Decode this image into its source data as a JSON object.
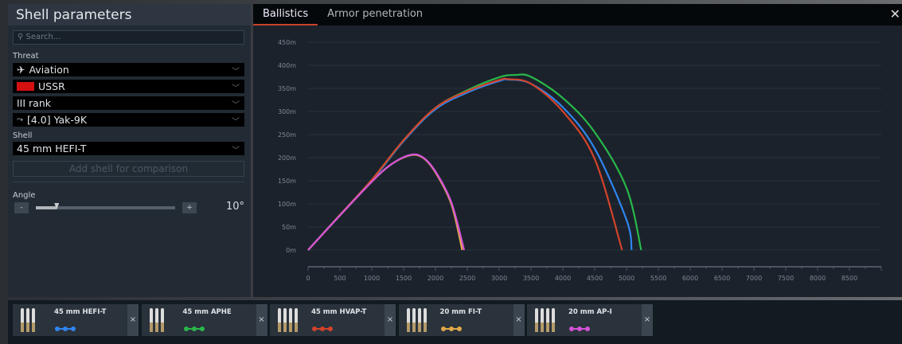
{
  "panel": {
    "title": "Shell parameters",
    "search_placeholder": "Search...",
    "threat_label": "Threat",
    "threat": "Aviation",
    "country": "USSR",
    "rank": "III rank",
    "vehicle": "[4.0] Yak-9K",
    "shell_label": "Shell",
    "shell": "45 mm HEFI-T",
    "add_button": "Add shell for comparison",
    "angle_label": "Angle",
    "angle_value": "10°",
    "angle_minus": "-",
    "angle_plus": "+",
    "angle_fraction": 0.15
  },
  "tabs": [
    {
      "label": "Ballistics",
      "active": true
    },
    {
      "label": "Armor penetration",
      "active": false
    }
  ],
  "close_label": "✕",
  "chart_data": {
    "type": "line",
    "xlim": [
      0,
      9000
    ],
    "ylim": [
      0,
      450
    ],
    "grid": true,
    "yticks": [
      "0m",
      "50m",
      "100m",
      "150m",
      "200m",
      "250m",
      "300m",
      "350m",
      "400m",
      "450m"
    ],
    "yvals": [
      0,
      50,
      100,
      150,
      200,
      250,
      300,
      350,
      400,
      450
    ],
    "xticks": [
      "0",
      "500",
      "1000",
      "1500",
      "2000",
      "2500",
      "3000",
      "3500",
      "4000",
      "4500",
      "5000",
      "5500",
      "6000",
      "6500",
      "7000",
      "7500",
      "8000",
      "8500"
    ],
    "series": [
      {
        "name": "45 mm HEFI-T",
        "color": "#2f86f0",
        "points": [
          [
            0,
            0
          ],
          [
            500,
            76
          ],
          [
            1000,
            150
          ],
          [
            1500,
            236
          ],
          [
            2000,
            305
          ],
          [
            2500,
            341
          ],
          [
            3000,
            366
          ],
          [
            3150,
            369
          ],
          [
            3500,
            360
          ],
          [
            4000,
            309
          ],
          [
            4500,
            220
          ],
          [
            5000,
            65
          ],
          [
            5080,
            0
          ]
        ]
      },
      {
        "name": "45 mm APHE",
        "color": "#28b84a",
        "points": [
          [
            0,
            0
          ],
          [
            500,
            76
          ],
          [
            1000,
            152
          ],
          [
            1500,
            238
          ],
          [
            2000,
            308
          ],
          [
            2500,
            346
          ],
          [
            3000,
            374
          ],
          [
            3250,
            379
          ],
          [
            3500,
            375
          ],
          [
            4000,
            329
          ],
          [
            4500,
            255
          ],
          [
            5000,
            134
          ],
          [
            5230,
            0
          ]
        ]
      },
      {
        "name": "45 mm HVAP-T",
        "color": "#d2432b",
        "points": [
          [
            0,
            0
          ],
          [
            500,
            76
          ],
          [
            1000,
            152
          ],
          [
            1500,
            238
          ],
          [
            2000,
            308
          ],
          [
            2500,
            344
          ],
          [
            3000,
            368
          ],
          [
            3150,
            370
          ],
          [
            3500,
            360
          ],
          [
            4000,
            300
          ],
          [
            4500,
            197
          ],
          [
            4930,
            0
          ]
        ]
      },
      {
        "name": "20 mm FI-T",
        "color": "#e0a84a",
        "points": [
          [
            0,
            0
          ],
          [
            500,
            75
          ],
          [
            1000,
            148
          ],
          [
            1300,
            185
          ],
          [
            1600,
            205
          ],
          [
            1800,
            200
          ],
          [
            2000,
            168
          ],
          [
            2250,
            99
          ],
          [
            2420,
            0
          ]
        ]
      },
      {
        "name": "20 mm AP-I",
        "color": "#d452d8",
        "points": [
          [
            0,
            0
          ],
          [
            500,
            75
          ],
          [
            1000,
            148
          ],
          [
            1300,
            185
          ],
          [
            1600,
            206
          ],
          [
            1800,
            201
          ],
          [
            2000,
            170
          ],
          [
            2250,
            103
          ],
          [
            2450,
            0
          ]
        ]
      }
    ]
  },
  "cards": [
    {
      "name": "45 mm HEFI-T",
      "color": "#2f86f0",
      "shells": 3
    },
    {
      "name": "45 mm APHE",
      "color": "#28b84a",
      "shells": 3
    },
    {
      "name": "45 mm HVAP-T",
      "color": "#d2432b",
      "shells": 4
    },
    {
      "name": "20 mm FI-T",
      "color": "#e0a84a",
      "shells": 4
    },
    {
      "name": "20 mm AP-I",
      "color": "#d452d8",
      "shells": 4
    }
  ],
  "card_remove": "×"
}
